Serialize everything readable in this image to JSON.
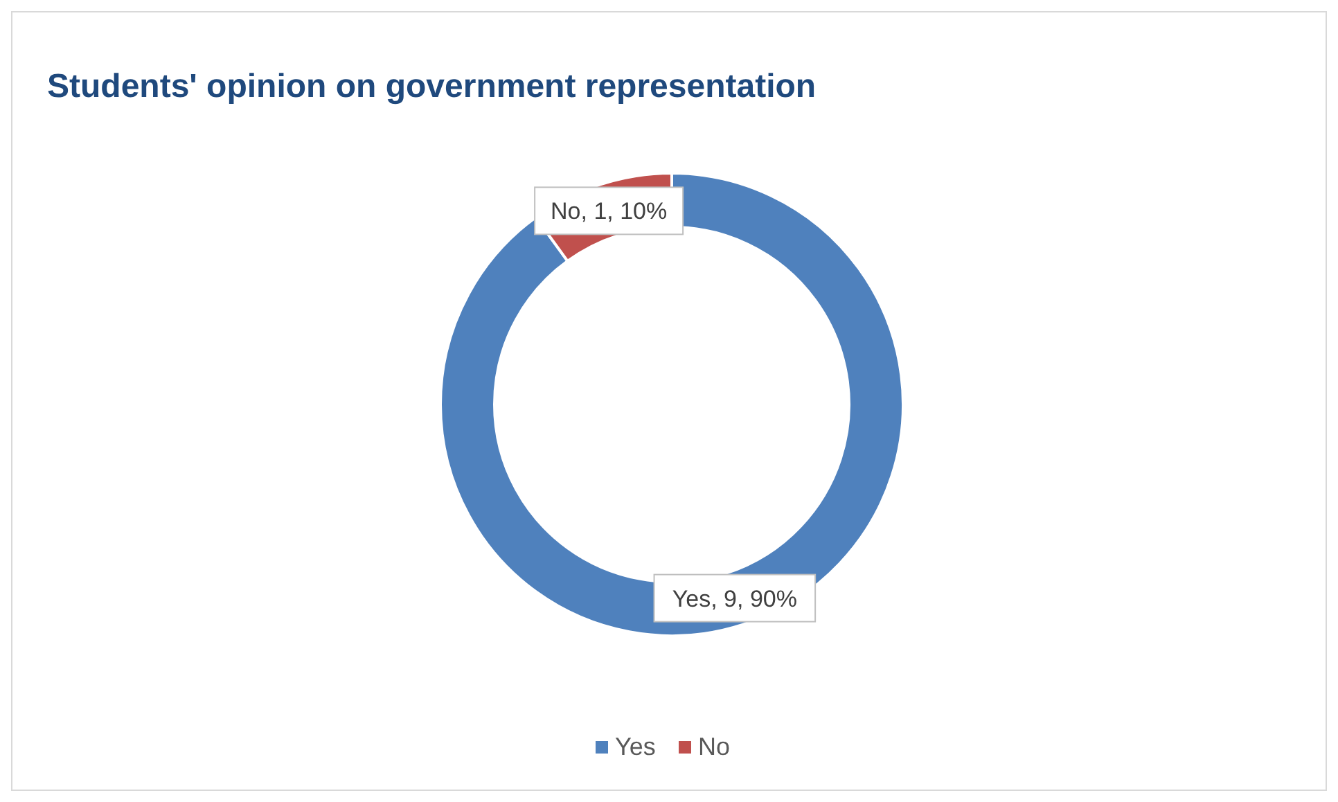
{
  "chart_data": {
    "type": "donut",
    "title": "Students' opinion on government representation",
    "categories": [
      "Yes",
      "No"
    ],
    "values": [
      9,
      1
    ],
    "colors": [
      "#4f81bd",
      "#c0504d"
    ],
    "value_labels": [
      "Yes, 9, 90%",
      "No, 1, 10%"
    ],
    "legend": "bottom"
  }
}
